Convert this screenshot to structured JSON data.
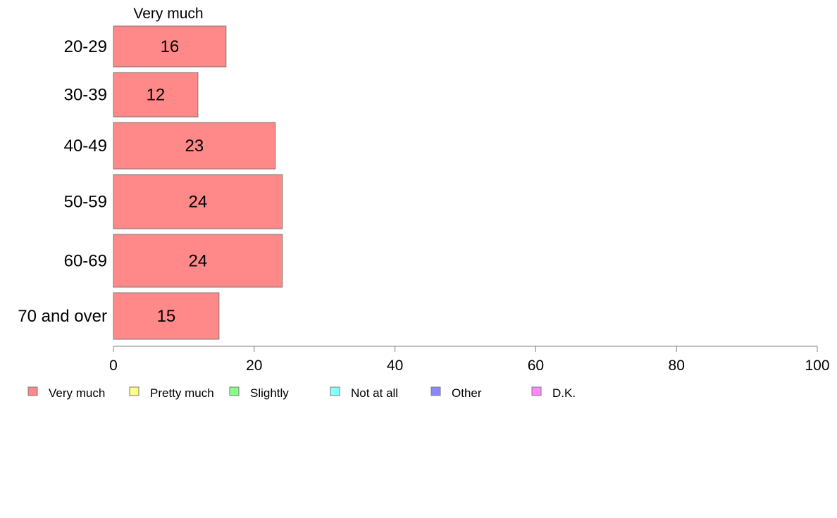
{
  "chart_data": {
    "type": "bar",
    "orientation": "horizontal",
    "stacked": true,
    "column_header": "Very much",
    "categories": [
      "20-29",
      "30-39",
      "40-49",
      "50-59",
      "60-69",
      "70 and over"
    ],
    "series": [
      {
        "name": "Very much",
        "color": "#ff8888",
        "values": [
          16,
          12,
          23,
          24,
          24,
          15
        ]
      }
    ],
    "xlim": [
      0,
      100
    ],
    "xticks": [
      0,
      20,
      40,
      60,
      80,
      100
    ],
    "grid": false,
    "legend": {
      "placement": "bottom-left",
      "entries": [
        {
          "label": "Very much",
          "color": "#ff8888"
        },
        {
          "label": "Pretty much",
          "color": "#ffff88"
        },
        {
          "label": "Slightly",
          "color": "#88ff88"
        },
        {
          "label": "Not at all",
          "color": "#88ffff"
        },
        {
          "label": "Other",
          "color": "#8888ff"
        },
        {
          "label": "D.K.",
          "color": "#ff88ff"
        }
      ]
    }
  }
}
